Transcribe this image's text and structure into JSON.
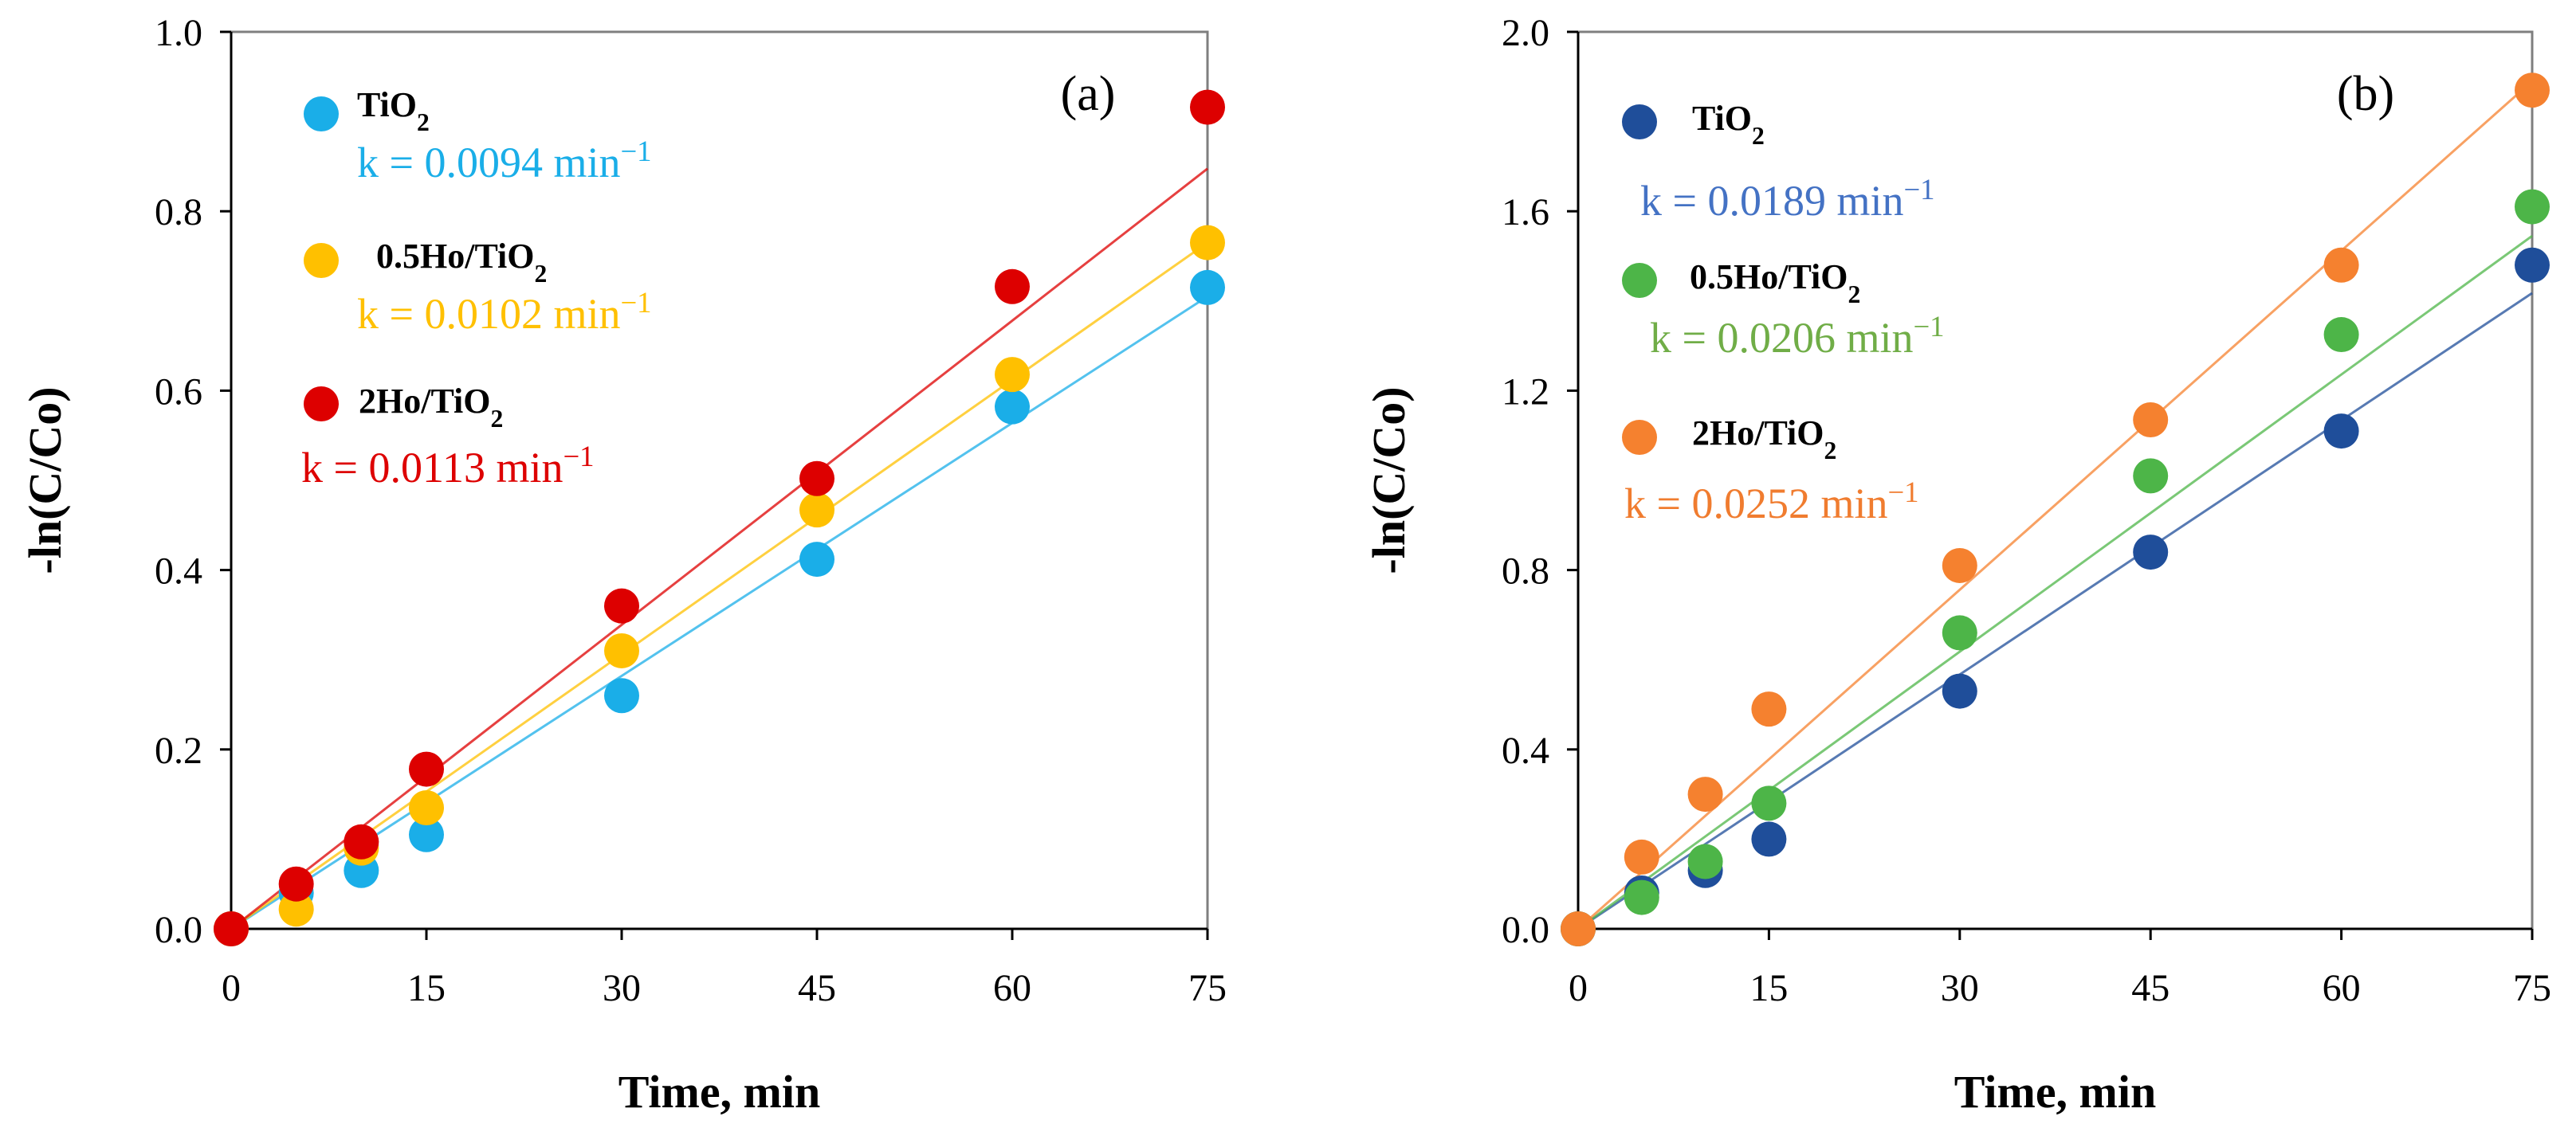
{
  "chart_data": [
    {
      "type": "scatter",
      "panel_label": "(a)",
      "xlabel": "Time, min",
      "ylabel": "-ln(C/Co)",
      "xlim": [
        0,
        75
      ],
      "ylim": [
        0,
        1.0
      ],
      "x_ticks": [
        "0",
        "15",
        "30",
        "45",
        "60",
        "75"
      ],
      "y_ticks": [
        "0.0",
        "0.2",
        "0.4",
        "0.6",
        "0.8",
        "1.0"
      ],
      "x": [
        0,
        5,
        10,
        15,
        30,
        45,
        60,
        75
      ],
      "series": [
        {
          "name": "TiO",
          "subscript": "2",
          "k_label": "k = 0.0094  min",
          "k_exp": "−1",
          "k": 0.0094,
          "color": "#1aaee8",
          "values": [
            0,
            0.04,
            0.065,
            0.105,
            0.26,
            0.412,
            0.582,
            0.715
          ]
        },
        {
          "name": "0.5Ho/TiO",
          "subscript": "2",
          "k_label": "k = 0.0102  min",
          "k_exp": "−1",
          "k": 0.0102,
          "color": "#ffc000",
          "values": [
            0,
            0.022,
            0.09,
            0.135,
            0.31,
            0.467,
            0.618,
            0.765
          ]
        },
        {
          "name": "2Ho/TiO",
          "subscript": "2",
          "k_label": "k = 0.0113 min",
          "k_exp": "−1",
          "k": 0.0113,
          "color": "#dd0000",
          "values": [
            0,
            0.05,
            0.097,
            0.178,
            0.36,
            0.502,
            0.716,
            0.916
          ]
        }
      ]
    },
    {
      "type": "scatter",
      "panel_label": "(b)",
      "xlabel": "Time, min",
      "ylabel": "-ln(C/Co)",
      "xlim": [
        0,
        75
      ],
      "ylim": [
        0,
        2.0
      ],
      "x_ticks": [
        "0",
        "15",
        "30",
        "45",
        "60",
        "75"
      ],
      "y_ticks": [
        "0.0",
        "0.4",
        "0.8",
        "1.2",
        "1.6",
        "2.0"
      ],
      "x": [
        0,
        5,
        10,
        15,
        30,
        45,
        60,
        75
      ],
      "series": [
        {
          "name": "TiO",
          "subscript": "2",
          "k_label": "k = 0.0189  min",
          "k_exp": "−1",
          "k": 0.0189,
          "color": "#1f4e9a",
          "label_color": "#4472c4",
          "values": [
            0,
            0.08,
            0.13,
            0.2,
            0.53,
            0.84,
            1.11,
            1.48
          ]
        },
        {
          "name": "0.5Ho/TiO",
          "subscript": "2",
          "k_label": "k = 0.0206  min",
          "k_exp": "−1",
          "k": 0.0206,
          "color": "#4db548",
          "label_color": "#70ad47",
          "values": [
            0,
            0.07,
            0.15,
            0.28,
            0.66,
            1.01,
            1.325,
            1.61
          ]
        },
        {
          "name": "2Ho/TiO",
          "subscript": "2",
          "k_label": "k = 0.0252  min",
          "k_exp": "−1",
          "k": 0.0252,
          "color": "#f5812f",
          "label_color": "#f07c2f",
          "values": [
            0,
            0.16,
            0.3,
            0.49,
            0.81,
            1.135,
            1.48,
            1.87
          ]
        }
      ]
    }
  ]
}
